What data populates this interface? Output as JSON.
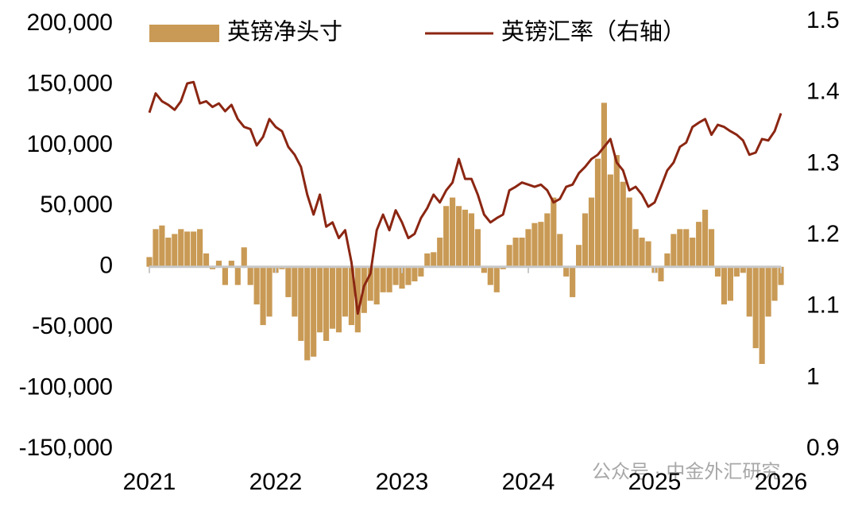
{
  "chart_data": {
    "type": "bar",
    "legend": "top",
    "x": [
      2021.0,
      2021.05,
      2021.1,
      2021.15,
      2021.2,
      2021.25,
      2021.3,
      2021.35,
      2021.4,
      2021.45,
      2021.5,
      2021.55,
      2021.6,
      2021.65,
      2021.7,
      2021.75,
      2021.8,
      2021.85,
      2021.9,
      2021.95,
      2022.0,
      2022.05,
      2022.1,
      2022.15,
      2022.2,
      2022.25,
      2022.3,
      2022.35,
      2022.4,
      2022.45,
      2022.5,
      2022.55,
      2022.6,
      2022.65,
      2022.7,
      2022.75,
      2022.8,
      2022.85,
      2022.9,
      2022.95,
      2023.0,
      2023.05,
      2023.1,
      2023.15,
      2023.2,
      2023.25,
      2023.3,
      2023.35,
      2023.4,
      2023.45,
      2023.5,
      2023.55,
      2023.6,
      2023.65,
      2023.7,
      2023.75,
      2023.8,
      2023.85,
      2023.9,
      2023.95,
      2024.0,
      2024.05,
      2024.1,
      2024.15,
      2024.2,
      2024.25,
      2024.3,
      2024.35,
      2024.4,
      2024.45,
      2024.5,
      2024.55,
      2024.6,
      2024.65,
      2024.7,
      2024.75,
      2024.8,
      2024.85,
      2024.9,
      2024.95,
      2025.0,
      2025.05,
      2025.1,
      2025.15,
      2025.2,
      2025.25,
      2025.3,
      2025.35,
      2025.4,
      2025.45,
      2025.5,
      2025.55,
      2025.6,
      2025.65,
      2025.7,
      2025.75,
      2025.8,
      2025.85,
      2025.9,
      2025.95,
      2026.0
    ],
    "series": [
      {
        "name": "英镑净头寸",
        "type": "bar",
        "color": "#c99a55",
        "values": [
          8000,
          31000,
          34000,
          24000,
          27000,
          31000,
          29000,
          29000,
          31000,
          11000,
          -2000,
          5000,
          -15000,
          5000,
          -15000,
          16000,
          -15000,
          -31000,
          -48000,
          -41000,
          -5000,
          -2000,
          -25000,
          -41000,
          -61000,
          -77000,
          -74000,
          -54000,
          -61000,
          -51000,
          -54000,
          -41000,
          -48000,
          -54000,
          -38000,
          -28000,
          -31000,
          -21000,
          -21000,
          -15000,
          -18000,
          -15000,
          -12000,
          -8000,
          11000,
          12000,
          24000,
          50000,
          57000,
          50000,
          47000,
          44000,
          31000,
          -5000,
          -15000,
          -21000,
          -2000,
          18000,
          24000,
          24000,
          31000,
          36000,
          37000,
          44000,
          57000,
          27000,
          -8000,
          -25000,
          18000,
          44000,
          57000,
          89000,
          135000,
          76000,
          92000,
          70000,
          57000,
          31000,
          24000,
          21000,
          -5000,
          -12000,
          11000,
          27000,
          31000,
          31000,
          24000,
          37000,
          47000,
          31000,
          -8000,
          -31000,
          -28000,
          -8000,
          -5000,
          -41000,
          -67000,
          -80000,
          -41000,
          -28000,
          -15000
        ]
      },
      {
        "name": "英镑汇率（右轴）",
        "type": "line",
        "axis": "y2",
        "color": "#8b2612",
        "values": [
          1.372,
          1.399,
          1.388,
          1.383,
          1.376,
          1.388,
          1.413,
          1.415,
          1.385,
          1.388,
          1.38,
          1.385,
          1.374,
          1.383,
          1.363,
          1.352,
          1.349,
          1.326,
          1.338,
          1.363,
          1.352,
          1.346,
          1.324,
          1.313,
          1.296,
          1.257,
          1.229,
          1.257,
          1.212,
          1.218,
          1.196,
          1.207,
          1.162,
          1.09,
          1.129,
          1.146,
          1.207,
          1.229,
          1.207,
          1.235,
          1.218,
          1.196,
          1.202,
          1.224,
          1.238,
          1.257,
          1.246,
          1.263,
          1.274,
          1.307,
          1.279,
          1.279,
          1.257,
          1.229,
          1.218,
          1.224,
          1.229,
          1.263,
          1.268,
          1.274,
          1.271,
          1.268,
          1.271,
          1.263,
          1.246,
          1.251,
          1.268,
          1.271,
          1.287,
          1.296,
          1.307,
          1.313,
          1.324,
          1.335,
          1.302,
          1.291,
          1.263,
          1.268,
          1.257,
          1.24,
          1.246,
          1.268,
          1.291,
          1.302,
          1.324,
          1.33,
          1.352,
          1.358,
          1.363,
          1.341,
          1.355,
          1.352,
          1.346,
          1.341,
          1.333,
          1.313,
          1.316,
          1.335,
          1.333,
          1.346,
          1.371
        ]
      }
    ],
    "xlim": [
      2021,
      2026
    ],
    "xticks": [
      2021,
      2022,
      2023,
      2024,
      2025,
      2026
    ],
    "ylim": [
      -150000,
      200000
    ],
    "yticks": [
      {
        "value": -150000,
        "label": "-150,000"
      },
      {
        "value": -100000,
        "label": "-100,000"
      },
      {
        "value": -50000,
        "label": "-50,000"
      },
      0,
      {
        "value": 50000,
        "label": "50,000"
      },
      {
        "value": 100000,
        "label": "100,000"
      },
      {
        "value": 150000,
        "label": "150,000"
      },
      {
        "value": 200000,
        "label": "200,000"
      }
    ],
    "y2lim": [
      0.9,
      1.5
    ],
    "y2ticks": [
      0.9,
      1,
      1.1,
      1.2,
      1.3,
      1.4,
      1.5
    ],
    "watermark": "公众号 · 中金外汇研究"
  }
}
